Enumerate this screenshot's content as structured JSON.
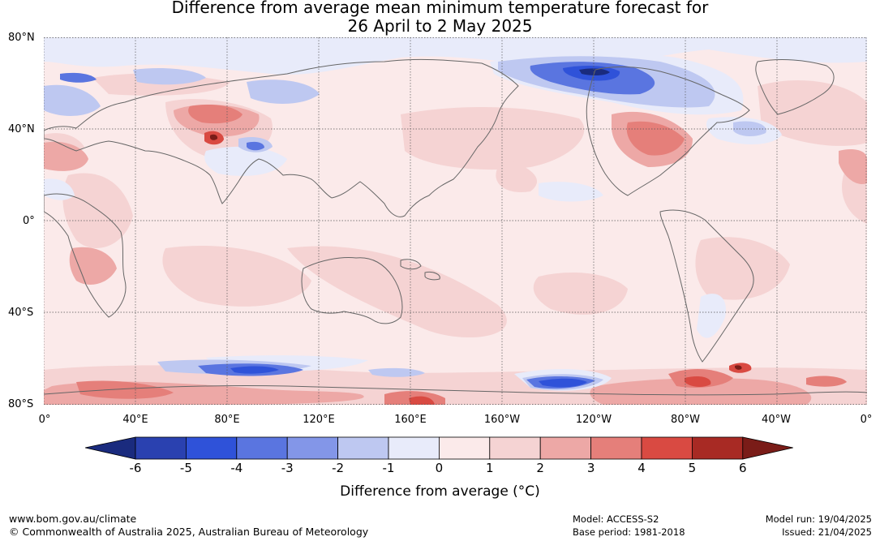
{
  "title": {
    "line1": "Difference from average mean minimum temperature forecast for",
    "line2": "26 April to 2 May 2025"
  },
  "map": {
    "lat_labels": [
      "80°N",
      "40°N",
      "0°",
      "40°S",
      "80°S"
    ],
    "lon_labels": [
      "0°",
      "40°E",
      "80°E",
      "120°E",
      "160°E",
      "160°W",
      "120°W",
      "80°W",
      "40°W",
      "0°"
    ],
    "colors": {
      "ocean_base": "#fbeaea",
      "coastline": "#666666",
      "grid": "#555555"
    }
  },
  "colorbar": {
    "ticks": [
      "-6",
      "-5",
      "-4",
      "-3",
      "-2",
      "-1",
      "0",
      "1",
      "2",
      "3",
      "4",
      "5",
      "6"
    ],
    "colors": [
      "#1a2b7e",
      "#2a41b0",
      "#2f52d9",
      "#5a75e0",
      "#8396e8",
      "#bec8f1",
      "#e8ebfa",
      "#fbeaea",
      "#f5d3d3",
      "#eda8a6",
      "#e57f7a",
      "#d94a42",
      "#a82a24",
      "#7a1c18"
    ],
    "label": "Difference from average (°C)"
  },
  "footer": {
    "site": "www.bom.gov.au/climate",
    "copyright": "© Commonwealth of Australia 2025, Australian Bureau of Meteorology",
    "model": "Model: ACCESS-S2",
    "base_period": "Base period: 1981-2018",
    "model_run": "Model run: 19/04/2025",
    "issued": "Issued: 21/04/2025"
  }
}
